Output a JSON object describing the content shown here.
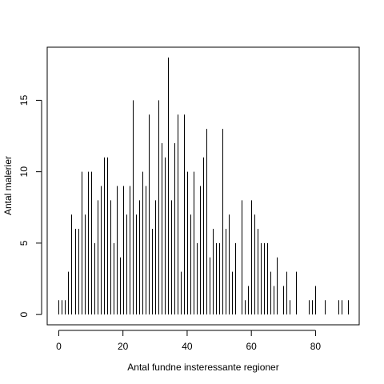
{
  "chart_data": {
    "type": "bar",
    "style": "histogram-lines",
    "title": "",
    "xlabel": "Antal fundne insteressante regioner",
    "ylabel": "Antal malerier",
    "xlim": [
      -3.6,
      93.6
    ],
    "ylim": [
      -0.72,
      18.72
    ],
    "xticks": [
      0,
      20,
      40,
      60,
      80
    ],
    "yticks": [
      0,
      5,
      10,
      15
    ],
    "grid": false,
    "x": [
      0,
      1,
      2,
      3,
      4,
      5,
      6,
      7,
      8,
      9,
      10,
      11,
      12,
      13,
      14,
      15,
      16,
      17,
      18,
      19,
      20,
      21,
      22,
      23,
      24,
      25,
      26,
      27,
      28,
      29,
      30,
      31,
      32,
      33,
      34,
      35,
      36,
      37,
      38,
      39,
      40,
      41,
      42,
      43,
      44,
      45,
      46,
      47,
      48,
      49,
      50,
      51,
      52,
      53,
      54,
      55,
      56,
      57,
      58,
      59,
      60,
      61,
      62,
      63,
      64,
      65,
      66,
      67,
      68,
      69,
      70,
      71,
      72,
      73,
      74,
      75,
      76,
      77,
      78,
      79,
      80,
      81,
      82,
      83,
      84,
      85,
      86,
      87,
      88,
      89,
      90
    ],
    "values": [
      1,
      1,
      1,
      3,
      7,
      6,
      6,
      10,
      7,
      10,
      10,
      5,
      8,
      9,
      11,
      11,
      8,
      5,
      9,
      4,
      9,
      7,
      9,
      15,
      7,
      8,
      10,
      9,
      14,
      6,
      8,
      15,
      12,
      11,
      18,
      8,
      12,
      14,
      3,
      14,
      10,
      7,
      10,
      5,
      9,
      11,
      13,
      4,
      6,
      5,
      5,
      13,
      6,
      7,
      3,
      5,
      0,
      8,
      1,
      2,
      8,
      7,
      6,
      5,
      5,
      5,
      3,
      2,
      4,
      0,
      2,
      3,
      1,
      0,
      3,
      0,
      0,
      0,
      1,
      1,
      2,
      0,
      0,
      1,
      0,
      0,
      0,
      1,
      1,
      0,
      1
    ]
  }
}
